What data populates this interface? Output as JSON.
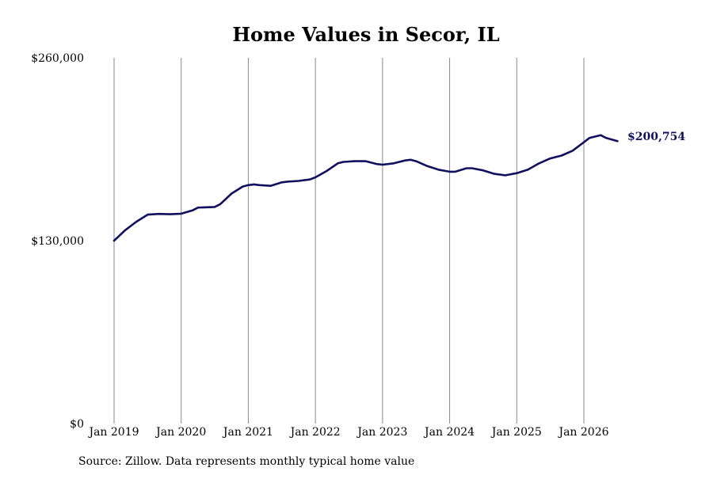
{
  "chart_data": {
    "type": "line",
    "title": "Home Values in Secor, IL",
    "xlabel": "",
    "ylabel": "",
    "ylim": [
      0,
      260000
    ],
    "y_ticks": [
      "$0",
      "$130,000",
      "$260,000"
    ],
    "y_tick_values": [
      0,
      130000,
      260000
    ],
    "x_tick_labels": [
      "Jan 2019",
      "Jan 2020",
      "Jan 2021",
      "Jan 2022",
      "Jan 2023",
      "Jan 2024",
      "Jan 2025",
      "Jan 2026"
    ],
    "x_tick_values": [
      2019,
      2020,
      2021,
      2022,
      2023,
      2024,
      2025,
      2026
    ],
    "grid": "vertical",
    "line_color": "#10105e",
    "end_label": "$200,754",
    "series": [
      {
        "x": [
          2019.0,
          2019.167,
          2019.333,
          2019.5,
          2019.667,
          2019.833,
          2020.0,
          2020.167,
          2020.25,
          2020.5,
          2020.583,
          2020.75,
          2020.917,
          2021.0,
          2021.083,
          2021.167,
          2021.333,
          2021.5,
          2021.583,
          2021.75,
          2021.917,
          2022.0,
          2022.167,
          2022.333,
          2022.417,
          2022.583,
          2022.75,
          2022.917,
          2023.0,
          2023.167,
          2023.333,
          2023.417,
          2023.5,
          2023.667,
          2023.833,
          2024.0,
          2024.083,
          2024.25,
          2024.333,
          2024.5,
          2024.667,
          2024.833,
          2025.0,
          2025.167,
          2025.333,
          2025.5,
          2025.667,
          2025.833,
          2026.0,
          2026.083,
          2026.25,
          2026.333,
          2026.5
        ],
        "values": [
          130000,
          137500,
          143500,
          148500,
          149000,
          148800,
          149200,
          151500,
          153500,
          154000,
          156000,
          163500,
          168500,
          169500,
          170000,
          169500,
          169000,
          171500,
          172000,
          172500,
          173500,
          175000,
          179500,
          185000,
          186000,
          186500,
          186500,
          184500,
          184000,
          185000,
          187000,
          187500,
          186500,
          183000,
          180500,
          179000,
          179000,
          181500,
          181500,
          180000,
          177500,
          176500,
          178000,
          180500,
          185000,
          188500,
          190500,
          194000,
          200000,
          203000,
          205000,
          203000,
          200754
        ]
      }
    ]
  },
  "footer": {
    "source": "Source: Zillow. Data represents monthly typical home value"
  }
}
